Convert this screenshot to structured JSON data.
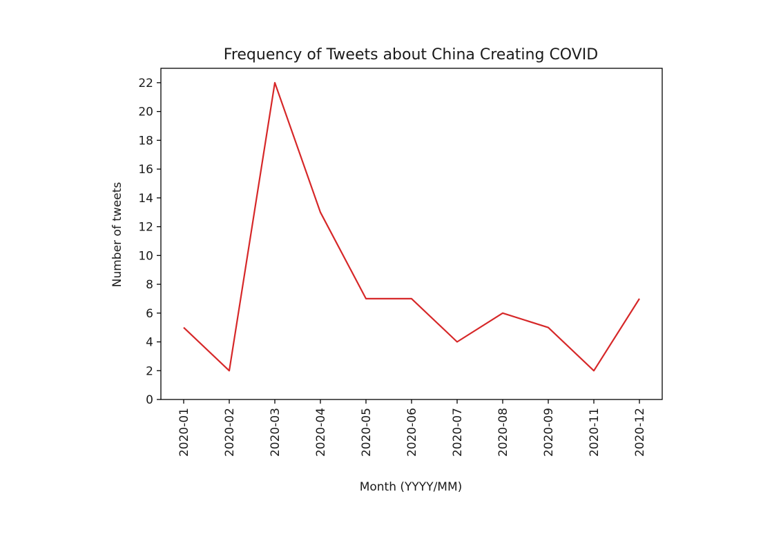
{
  "chart_data": {
    "type": "line",
    "title": "Frequency of Tweets about China Creating COVID",
    "xlabel": "Month (YYYY/MM)",
    "ylabel": "Number of tweets",
    "categories": [
      "2020-01",
      "2020-02",
      "2020-03",
      "2020-04",
      "2020-05",
      "2020-06",
      "2020-07",
      "2020-08",
      "2020-09",
      "2020-11",
      "2020-12"
    ],
    "values": [
      5,
      2,
      22,
      13,
      7,
      7,
      4,
      6,
      5,
      2,
      7
    ],
    "ylim": [
      0,
      23
    ],
    "yticks": [
      0,
      2,
      4,
      6,
      8,
      10,
      12,
      14,
      16,
      18,
      20,
      22
    ],
    "grid": false,
    "line_color": "#d62728"
  }
}
